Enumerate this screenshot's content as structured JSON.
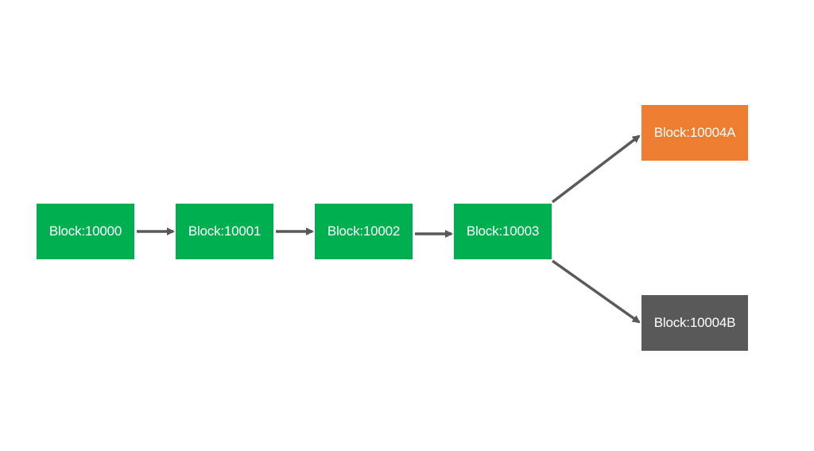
{
  "colors": {
    "chain_block": "#00b050",
    "fork_a": "#ed7d31",
    "fork_b": "#595959",
    "arrow": "#595959"
  },
  "blocks": [
    {
      "id": "b0",
      "label": "Block:10000",
      "color": "#00b050"
    },
    {
      "id": "b1",
      "label": "Block:10001",
      "color": "#00b050"
    },
    {
      "id": "b2",
      "label": "Block:10002",
      "color": "#00b050"
    },
    {
      "id": "b3",
      "label": "Block:10003",
      "color": "#00b050"
    },
    {
      "id": "b4a",
      "label": "Block:10004A",
      "color": "#ed7d31"
    },
    {
      "id": "b4b",
      "label": "Block:10004B",
      "color": "#595959"
    }
  ],
  "edges": [
    {
      "from": "b0",
      "to": "b1"
    },
    {
      "from": "b1",
      "to": "b2"
    },
    {
      "from": "b2",
      "to": "b3"
    },
    {
      "from": "b3",
      "to": "b4a"
    },
    {
      "from": "b3",
      "to": "b4b"
    }
  ]
}
